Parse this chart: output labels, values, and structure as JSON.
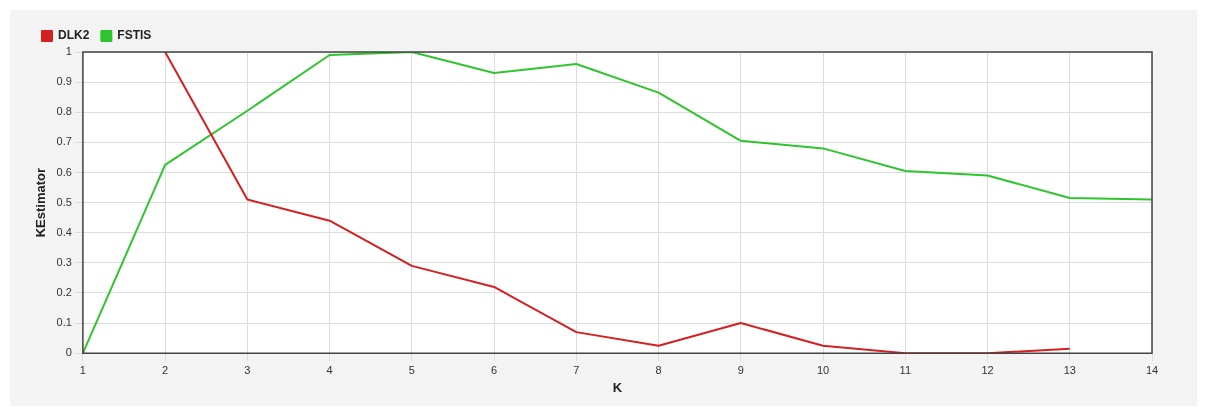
{
  "chart_data": {
    "type": "line",
    "xlabel": "K",
    "ylabel": "KEstimator",
    "x": [
      1,
      2,
      3,
      4,
      5,
      6,
      7,
      8,
      9,
      10,
      11,
      12,
      13,
      14
    ],
    "series": [
      {
        "name": "DLK2",
        "color": "#d42020",
        "values": [
          null,
          1,
          0.51,
          0.44,
          0.29,
          0.22,
          0.07,
          0.025,
          0.1,
          0.025,
          0,
          0,
          0.015,
          null
        ]
      },
      {
        "name": "FSTIS",
        "color": "#2ec52e",
        "values": [
          0,
          0.625,
          0.805,
          0.99,
          1,
          0.93,
          0.96,
          0.865,
          0.705,
          0.68,
          0.605,
          0.59,
          0.515,
          0.51
        ]
      }
    ],
    "xlim": [
      1,
      14
    ],
    "xticks": [
      1,
      2,
      3,
      4,
      5,
      6,
      7,
      8,
      9,
      10,
      11,
      12,
      13,
      14
    ],
    "ylim": [
      0,
      1
    ],
    "yticks": [
      0,
      0.1,
      0.2,
      0.3,
      0.4,
      0.5,
      0.6,
      0.7,
      0.8,
      0.9,
      1
    ],
    "grid": true,
    "legend": "top left",
    "marker": "none",
    "line_style": "solid"
  }
}
